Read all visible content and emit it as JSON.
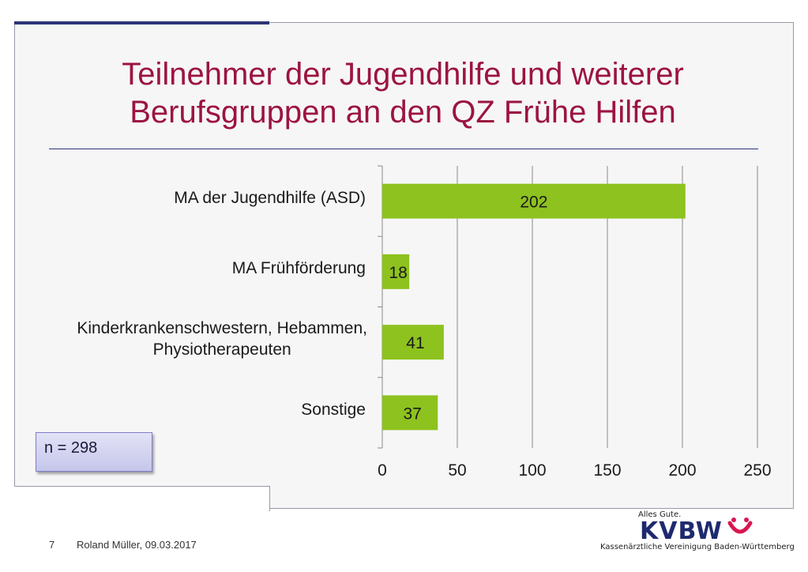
{
  "slide": {
    "title_line1": "Teilnehmer der Jugendhilfe und weiterer",
    "title_line2": "Berufsgruppen an den QZ Frühe Hilfen",
    "n_note": "n = 298",
    "page_number": "7",
    "author_date": "Roland Müller, 09.03.2017"
  },
  "logo": {
    "slogan": "Alles Gute.",
    "wordmark": "KVBW",
    "subtitle": "Kassenärztliche Vereinigung Baden-Württemberg"
  },
  "colors": {
    "bar": "#8dc21f",
    "title": "#9c1440",
    "accent": "#2c3478"
  },
  "chart_data": {
    "type": "bar",
    "orientation": "horizontal",
    "categories": [
      "MA der Jugendhilfe (ASD)",
      "MA Frühförderung",
      "Kinderkrankenschwestern, Hebammen, Physiotherapeuten",
      "Sonstige"
    ],
    "category_lines": [
      [
        "MA der Jugendhilfe (ASD)"
      ],
      [
        "MA Frühförderung"
      ],
      [
        "Kinderkrankenschwestern, Hebammen,",
        "Physiotherapeuten"
      ],
      [
        "Sonstige"
      ]
    ],
    "values": [
      202,
      18,
      41,
      37
    ],
    "data_labels": [
      "202",
      "18",
      "41",
      "37"
    ],
    "xlim": [
      0,
      250
    ],
    "xticks": [
      0,
      50,
      100,
      150,
      200,
      250
    ],
    "grid": "vertical",
    "legend": "none"
  }
}
